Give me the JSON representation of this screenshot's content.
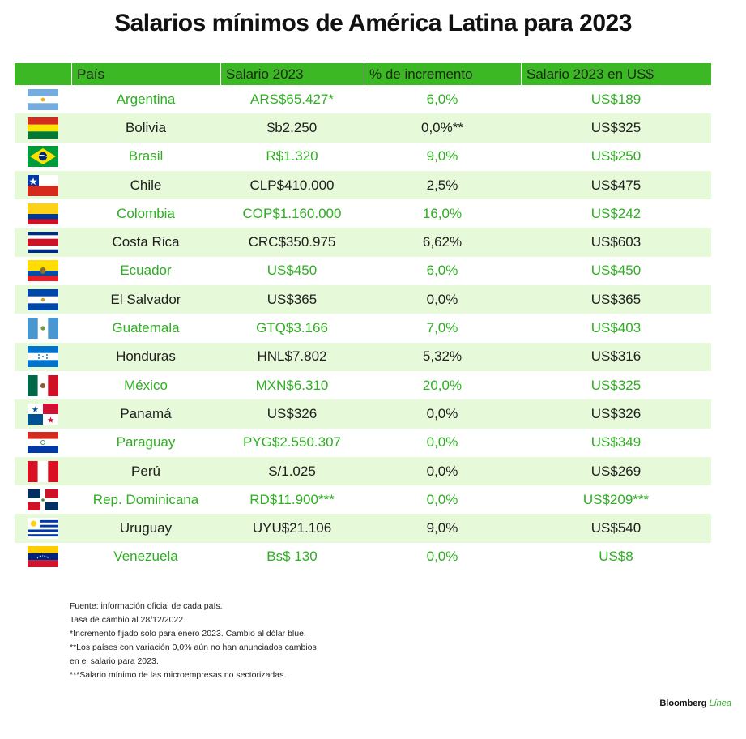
{
  "title": "Salarios mínimos de América Latina para 2023",
  "chart_data": {
    "type": "table",
    "columns": [
      "",
      "País",
      "Salario 2023",
      "% de incremento",
      "Salario 2023 en US$"
    ],
    "rows": [
      {
        "flag": "argentina",
        "country": "Argentina",
        "salary": "ARS$65.427*",
        "increase": "6,0%",
        "usd": "US$189"
      },
      {
        "flag": "bolivia",
        "country": "Bolivia",
        "salary": "$b2.250",
        "increase": "0,0%**",
        "usd": "US$325"
      },
      {
        "flag": "brasil",
        "country": "Brasil",
        "salary": "R$1.320",
        "increase": "9,0%",
        "usd": "US$250"
      },
      {
        "flag": "chile",
        "country": "Chile",
        "salary": "CLP$410.000",
        "increase": "2,5%",
        "usd": "US$475"
      },
      {
        "flag": "colombia",
        "country": "Colombia",
        "salary": "COP$1.160.000",
        "increase": "16,0%",
        "usd": "US$242"
      },
      {
        "flag": "costa-rica",
        "country": "Costa Rica",
        "salary": "CRC$350.975",
        "increase": "6,62%",
        "usd": "US$603"
      },
      {
        "flag": "ecuador",
        "country": "Ecuador",
        "salary": "US$450",
        "increase": "6,0%",
        "usd": "US$450"
      },
      {
        "flag": "el-salvador",
        "country": "El Salvador",
        "salary": "US$365",
        "increase": "0,0%",
        "usd": "US$365"
      },
      {
        "flag": "guatemala",
        "country": "Guatemala",
        "salary": "GTQ$3.166",
        "increase": "7,0%",
        "usd": "US$403"
      },
      {
        "flag": "honduras",
        "country": "Honduras",
        "salary": "HNL$7.802",
        "increase": "5,32%",
        "usd": "US$316"
      },
      {
        "flag": "mexico",
        "country": "México",
        "salary": "MXN$6.310",
        "increase": "20,0%",
        "usd": "US$325"
      },
      {
        "flag": "panama",
        "country": "Panamá",
        "salary": "US$326",
        "increase": "0,0%",
        "usd": "US$326"
      },
      {
        "flag": "paraguay",
        "country": "Paraguay",
        "salary": "PYG$2.550.307",
        "increase": "0,0%",
        "usd": "US$349"
      },
      {
        "flag": "peru",
        "country": "Perú",
        "salary": "S/1.025",
        "increase": "0,0%",
        "usd": "US$269"
      },
      {
        "flag": "rep-dominicana",
        "country": "Rep. Dominicana",
        "salary": "RD$11.900***",
        "increase": "0,0%",
        "usd": "US$209***"
      },
      {
        "flag": "uruguay",
        "country": "Uruguay",
        "salary": "UYU$21.106",
        "increase": "9,0%",
        "usd": "US$540"
      },
      {
        "flag": "venezuela",
        "country": "Venezuela",
        "salary": "Bs$ 130",
        "increase": "0,0%",
        "usd": "US$8"
      }
    ]
  },
  "notes": [
    "Fuente: información oficial de cada país.",
    "Tasa de cambio al 28/12/2022",
    "*Incremento fijado solo para enero 2023. Cambio al dólar blue.",
    "**Los países con variación 0,0% aún no han anunciados cambios",
    "en el salario para 2023.",
    "***Salario mínimo de las microempresas no sectorizadas."
  ],
  "brand": {
    "name": "Bloomberg",
    "accent": "Línea"
  },
  "colors": {
    "header_green": "#3cb824",
    "text_green": "#2fae22",
    "row_alt": "#e6f9d8"
  }
}
